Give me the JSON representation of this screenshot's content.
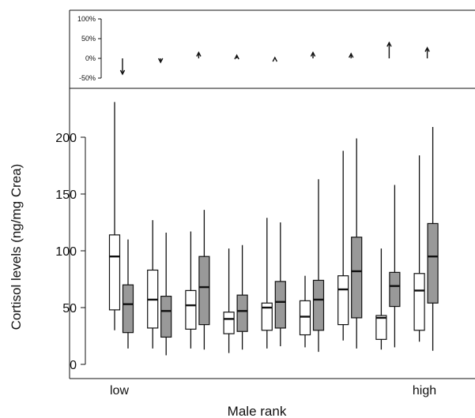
{
  "chart_data": [
    {
      "type": "arrow",
      "y_ticks": [
        "100%",
        "50%",
        "0%",
        "-50%"
      ],
      "ylim": [
        -50,
        100
      ],
      "values": [
        -40,
        -10,
        15,
        8,
        2,
        15,
        12,
        40,
        27
      ],
      "categories": [
        "1",
        "2",
        "3",
        "4",
        "5",
        "6",
        "7",
        "8",
        "9"
      ]
    },
    {
      "type": "boxplot",
      "xlabel": "Male rank",
      "ylabel": "Cortisol levels (ng/mg Crea)",
      "x_tick_labels": [
        "low",
        "high"
      ],
      "y_ticks": [
        0,
        50,
        100,
        150,
        200
      ],
      "ylim": [
        -8,
        245
      ],
      "grid": false,
      "colors": {
        "series_1": "#ffffff",
        "series_2": "#999999",
        "stroke": "#111111"
      },
      "groups": [
        {
          "rank": 1,
          "series_1": {
            "min": 30,
            "q1": 48,
            "median": 95,
            "q3": 114,
            "max": 231
          },
          "series_2": {
            "min": 14,
            "q1": 28,
            "median": 53,
            "q3": 70,
            "max": 110
          }
        },
        {
          "rank": 2,
          "series_1": {
            "min": 14,
            "q1": 32,
            "median": 57,
            "q3": 83,
            "max": 127
          },
          "series_2": {
            "min": 8,
            "q1": 24,
            "median": 47,
            "q3": 60,
            "max": 116
          }
        },
        {
          "rank": 3,
          "series_1": {
            "min": 14,
            "q1": 31,
            "median": 52,
            "q3": 65,
            "max": 117
          },
          "series_2": {
            "min": 13,
            "q1": 35,
            "median": 68,
            "q3": 95,
            "max": 136
          }
        },
        {
          "rank": 4,
          "series_1": {
            "min": 10,
            "q1": 27,
            "median": 40,
            "q3": 46,
            "max": 102
          },
          "series_2": {
            "min": 13,
            "q1": 29,
            "median": 47,
            "q3": 61,
            "max": 105
          }
        },
        {
          "rank": 5,
          "series_1": {
            "min": 14,
            "q1": 30,
            "median": 50,
            "q3": 54,
            "max": 129
          },
          "series_2": {
            "min": 16,
            "q1": 32,
            "median": 55,
            "q3": 73,
            "max": 125
          }
        },
        {
          "rank": 6,
          "series_1": {
            "min": 15,
            "q1": 26,
            "median": 42,
            "q3": 56,
            "max": 78
          },
          "series_2": {
            "min": 11,
            "q1": 30,
            "median": 57,
            "q3": 74,
            "max": 163
          }
        },
        {
          "rank": 7,
          "series_1": {
            "min": 21,
            "q1": 35,
            "median": 66,
            "q3": 78,
            "max": 188
          },
          "series_2": {
            "min": 14,
            "q1": 41,
            "median": 82,
            "q3": 112,
            "max": 199
          }
        },
        {
          "rank": 8,
          "series_1": {
            "min": 13,
            "q1": 22,
            "median": 41,
            "q3": 43,
            "max": 102
          },
          "series_2": {
            "min": 15,
            "q1": 51,
            "median": 69,
            "q3": 81,
            "max": 158
          }
        },
        {
          "rank": 9,
          "series_1": {
            "min": 20,
            "q1": 30,
            "median": 65,
            "q3": 80,
            "max": 184
          },
          "series_2": {
            "min": 12,
            "q1": 54,
            "median": 95,
            "q3": 124,
            "max": 209
          }
        }
      ]
    }
  ]
}
